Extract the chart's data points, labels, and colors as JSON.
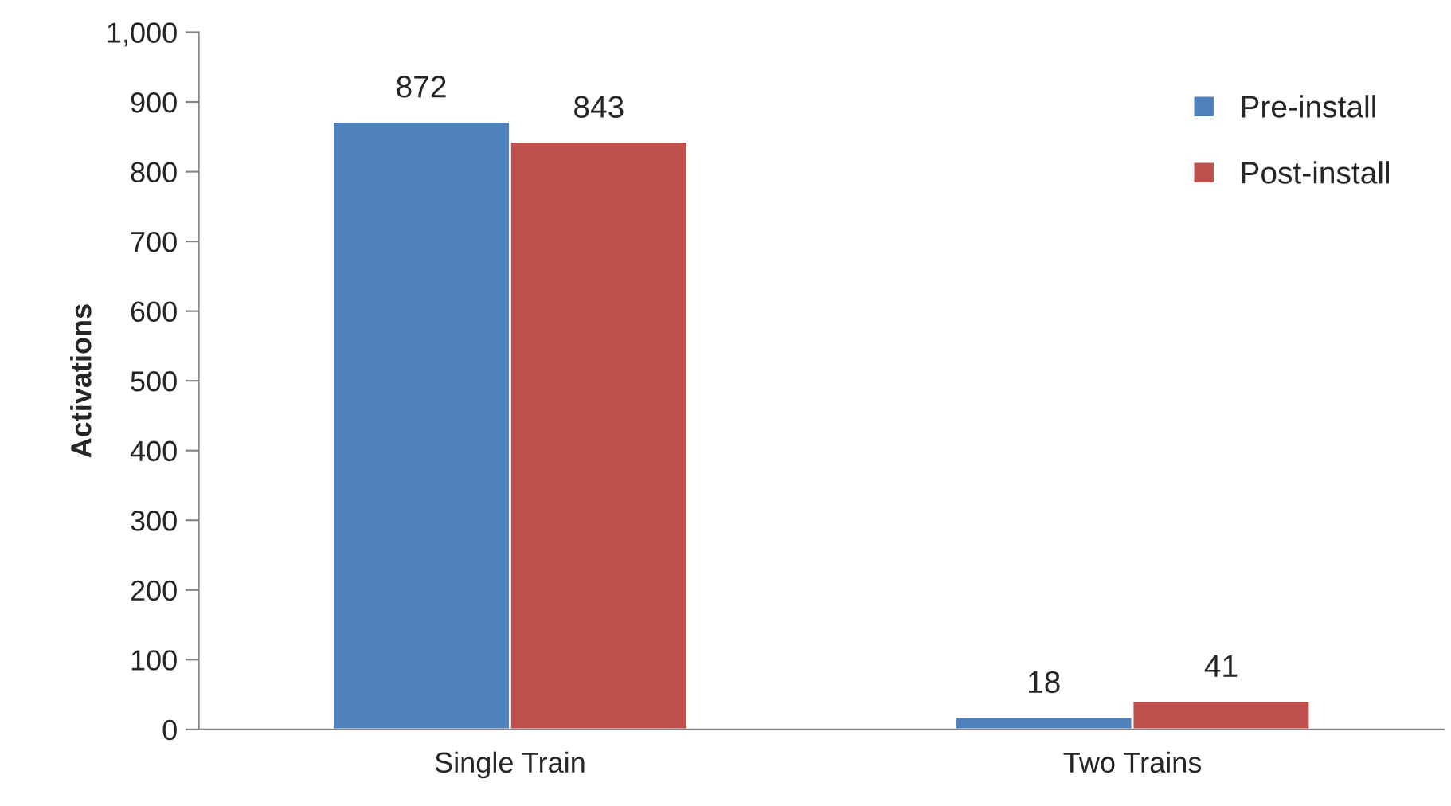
{
  "chart_data": {
    "type": "bar",
    "ylabel": "Activations",
    "categories": [
      "Single Train",
      "Two Trains"
    ],
    "series": [
      {
        "name": "Pre-install",
        "color": "#4f81bd",
        "values": [
          872,
          18
        ]
      },
      {
        "name": "Post-install",
        "color": "#c0504d",
        "values": [
          843,
          41
        ]
      }
    ],
    "ylim": [
      0,
      1000
    ],
    "yticks": [
      0,
      100,
      200,
      300,
      400,
      500,
      600,
      700,
      800,
      900,
      {
        "value": 1000,
        "label": "1,000"
      }
    ],
    "data_labels": true,
    "grid": false,
    "legend": "top right"
  }
}
